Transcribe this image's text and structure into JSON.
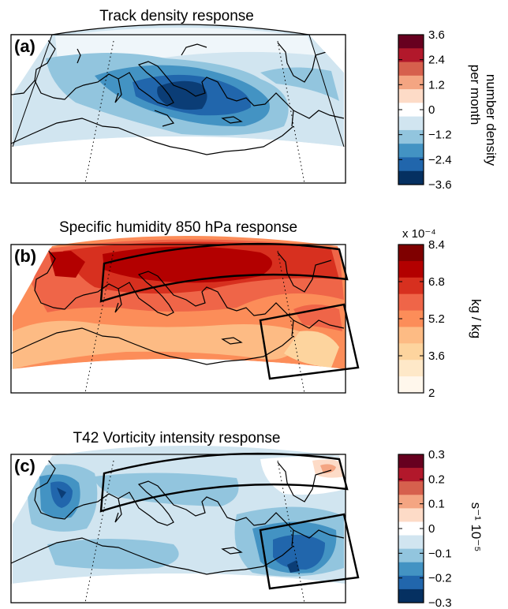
{
  "chart_data": [
    {
      "type": "heatmap",
      "panel": "(a)",
      "title": "Track density response",
      "colorbar": {
        "ticks": [
          "3.6",
          "2.4",
          "1.2",
          "0",
          "−1.2",
          "−2.4",
          "−3.6"
        ],
        "label_line1": "number density",
        "label_line2": "per month",
        "range": [
          -3.6,
          3.6
        ],
        "colors": [
          "#67001f",
          "#b2182b",
          "#d6604d",
          "#f4a582",
          "#fddbc7",
          "#ffffff",
          "#d1e5f0",
          "#92c5de",
          "#4393c3",
          "#2166ac",
          "#053061"
        ]
      },
      "field_colors": {
        "bg": "#d1e5f0",
        "c1": "#92c5de",
        "c2": "#4393c3",
        "c3": "#2166ac",
        "c4": "#0b3d76",
        "white": "#ffffff"
      }
    },
    {
      "type": "heatmap",
      "panel": "(b)",
      "title": "Specific humidity 850 hPa response",
      "colorbar": {
        "multiplier": "x 10⁻⁴",
        "ticks": [
          "8.4",
          "6.8",
          "5.2",
          "3.6",
          "2"
        ],
        "label": "kg / kg",
        "range": [
          2,
          10
        ],
        "colors": [
          "#7f0000",
          "#b30000",
          "#d7301f",
          "#ef6548",
          "#fc8d59",
          "#fdbb84",
          "#fdd49e",
          "#fee8c8",
          "#fff7ec"
        ]
      },
      "field_colors": {
        "bg": "#fc8d59",
        "c1": "#ef6548",
        "c2": "#d7301f",
        "c3": "#b30000",
        "light": "#fdbb84",
        "lighter": "#fdd49e"
      }
    },
    {
      "type": "heatmap",
      "panel": "(c)",
      "title": "T42 Vorticity intensity response",
      "colorbar": {
        "ticks": [
          "0.3",
          "0.2",
          "0.1",
          "0",
          "−0.1",
          "−0.2",
          "−0.3"
        ],
        "label": "s⁻¹ 10⁻⁵",
        "range": [
          -0.3,
          0.3
        ],
        "colors": [
          "#67001f",
          "#b2182b",
          "#d6604d",
          "#f4a582",
          "#fddbc7",
          "#ffffff",
          "#d1e5f0",
          "#92c5de",
          "#4393c3",
          "#2166ac",
          "#053061"
        ]
      },
      "field_colors": {
        "bg": "#d1e5f0",
        "c1": "#92c5de",
        "c2": "#4393c3",
        "c3": "#2166ac",
        "c4": "#0b3d76",
        "white": "#ffffff",
        "pink": "#fddbc7",
        "salmon": "#f4a582"
      }
    }
  ]
}
